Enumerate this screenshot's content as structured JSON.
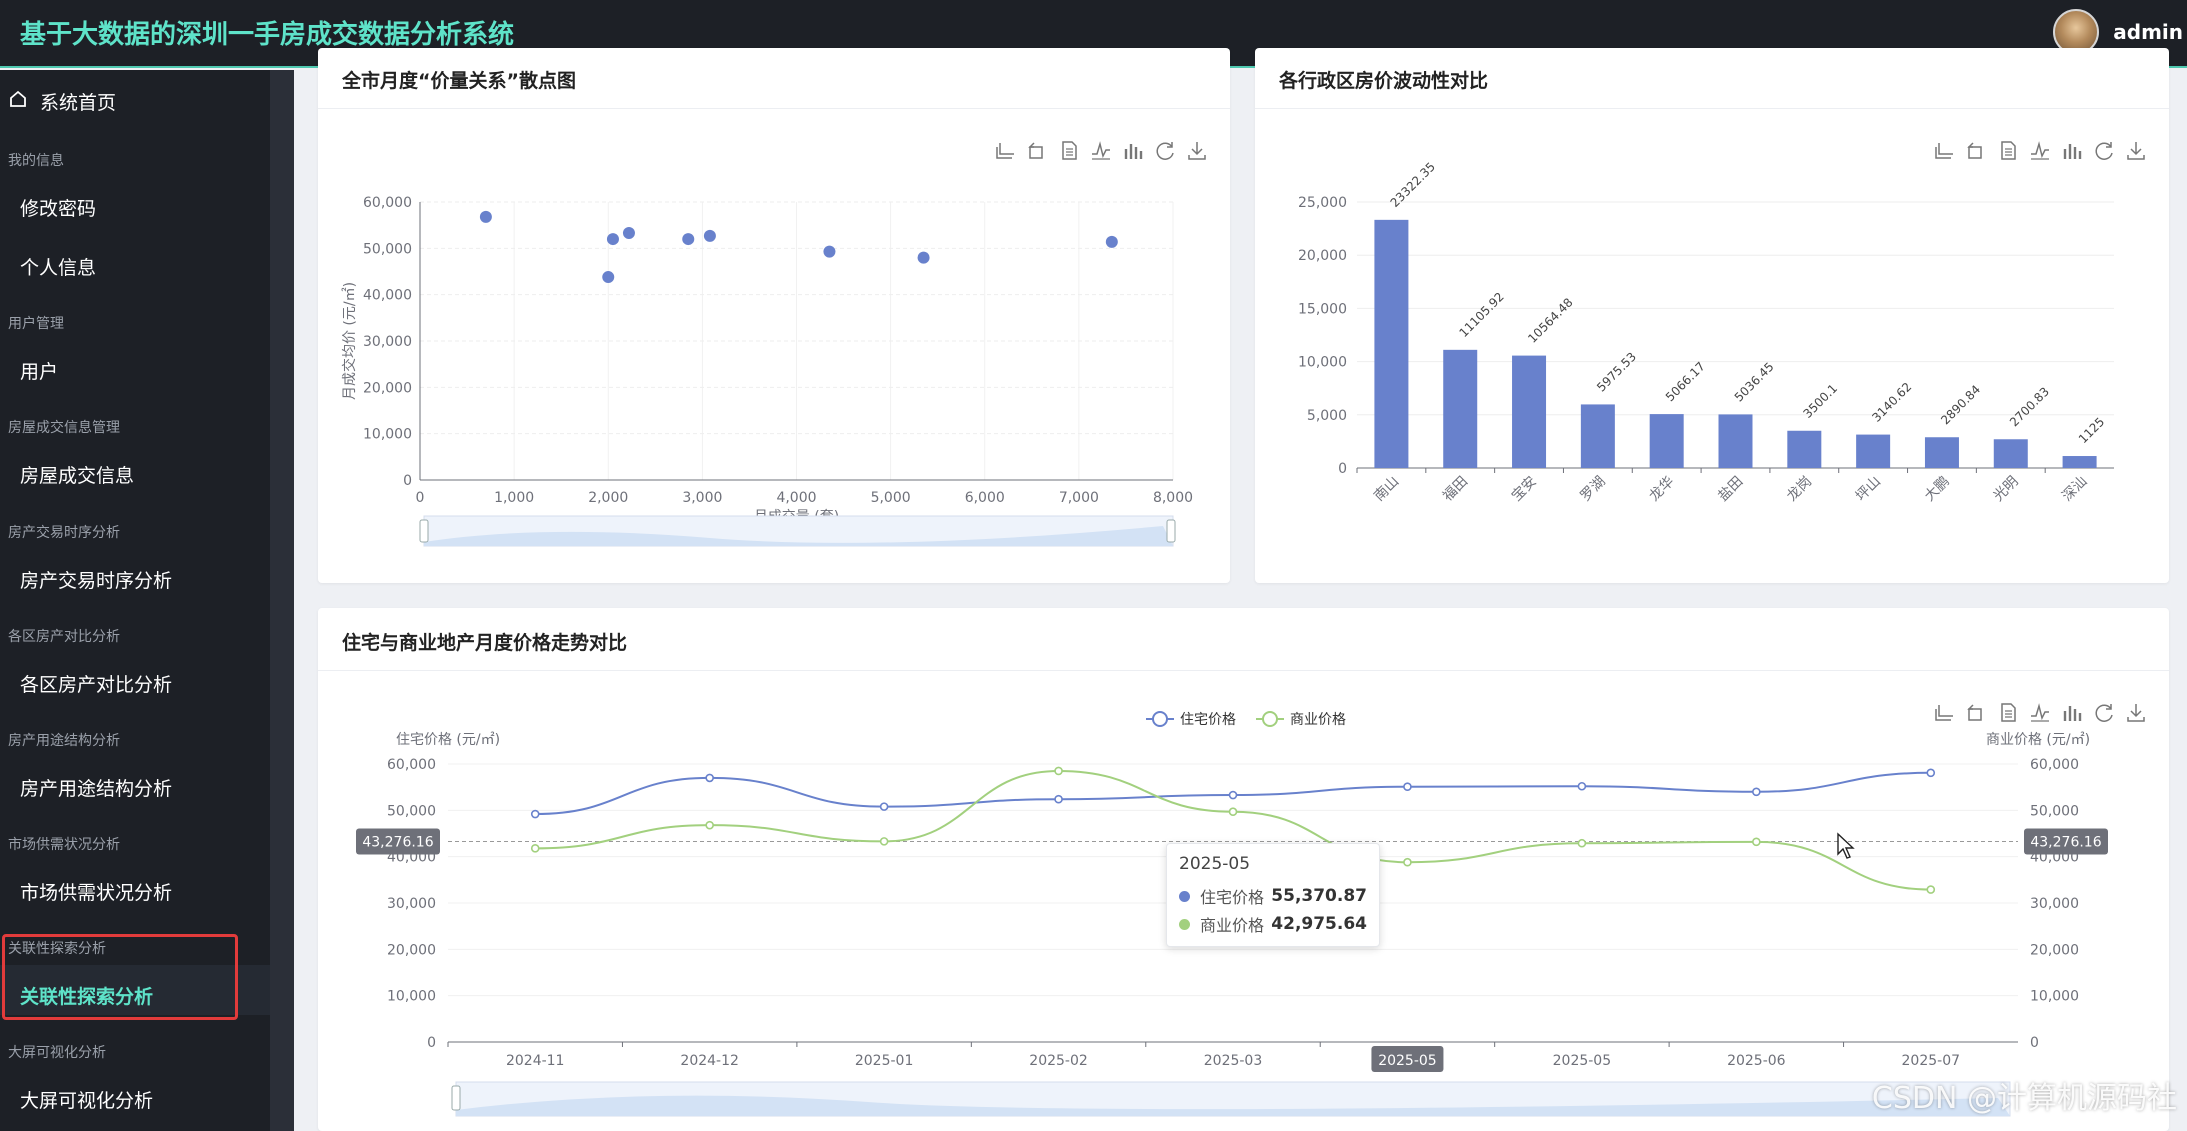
{
  "header": {
    "title": "基于大数据的深圳一手房成交数据分析系统",
    "username": "admin"
  },
  "sidebar": {
    "home": "系统首页",
    "groups": [
      {
        "label": "我的信息",
        "items": [
          "修改密码",
          "个人信息"
        ]
      },
      {
        "label": "用户管理",
        "items": [
          "用户"
        ]
      },
      {
        "label": "房屋成交信息管理",
        "items": [
          "房屋成交信息"
        ]
      },
      {
        "label": "房产交易时序分析",
        "items": [
          "房产交易时序分析"
        ]
      },
      {
        "label": "各区房产对比分析",
        "items": [
          "各区房产对比分析"
        ]
      },
      {
        "label": "房产用途结构分析",
        "items": [
          "房产用途结构分析"
        ]
      },
      {
        "label": "市场供需状况分析",
        "items": [
          "市场供需状况分析"
        ]
      },
      {
        "label": "关联性探索分析",
        "items": [
          "关联性探索分析"
        ]
      },
      {
        "label": "大屏可视化分析",
        "items": [
          "大屏可视化分析"
        ]
      }
    ],
    "active": "关联性探索分析"
  },
  "toolbox_icons": [
    "rect-zoom-icon",
    "zoom-reset-icon",
    "data-view-icon",
    "line-switch-icon",
    "bar-switch-icon",
    "restore-icon",
    "download-icon"
  ],
  "colors": {
    "accent": "#5ee3c9",
    "series_blue": "#6881cc",
    "series_green": "#a2d07e",
    "highlight": "#e23b3b"
  },
  "chart_data": [
    {
      "type": "scatter",
      "title": "全市月度“价量关系”散点图",
      "xlabel": "月成交量 (套)",
      "ylabel": "月成交均价 (元/㎡)",
      "xlim": [
        0,
        8000
      ],
      "ylim": [
        0,
        60000
      ],
      "xticks": [
        "0",
        "1,000",
        "2,000",
        "3,000",
        "4,000",
        "5,000",
        "6,000",
        "7,000",
        "8,000"
      ],
      "yticks": [
        "0",
        "10,000",
        "20,000",
        "30,000",
        "40,000",
        "50,000",
        "60,000"
      ],
      "points": [
        [
          700,
          56800
        ],
        [
          2000,
          43800
        ],
        [
          2050,
          52000
        ],
        [
          2220,
          53300
        ],
        [
          2850,
          52000
        ],
        [
          3080,
          52700
        ],
        [
          4350,
          49300
        ],
        [
          5350,
          48000
        ],
        [
          7350,
          51400
        ]
      ]
    },
    {
      "type": "bar",
      "title": "各行政区房价波动性对比",
      "categories": [
        "南山",
        "福田",
        "宝安",
        "罗湖",
        "龙华",
        "盐田",
        "龙岗",
        "坪山",
        "大鹏",
        "光明",
        "深汕"
      ],
      "values": [
        23322.35,
        11105.92,
        10564.48,
        5975.53,
        5066.17,
        5036.45,
        3500.1,
        3140.62,
        2890.84,
        2700.83,
        1125
      ],
      "value_labels": [
        "23322.35",
        "11105.92",
        "10564.48",
        "5975.53",
        "5066.17",
        "5036.45",
        "3500.1",
        "3140.62",
        "2890.84",
        "2700.83",
        "1125"
      ],
      "ylim": [
        0,
        25000
      ],
      "yticks": [
        "0",
        "5,000",
        "10,000",
        "15,000",
        "20,000",
        "25,000"
      ]
    },
    {
      "type": "line",
      "title": "住宅与商业地产月度价格走势对比",
      "categories": [
        "2024-11",
        "2024-12",
        "2025-01",
        "2025-02",
        "2025-03",
        "2025-05",
        "2025-05",
        "2025-06",
        "2025-07"
      ],
      "series": [
        {
          "name": "住宅价格",
          "values": [
            49200,
            57000,
            50800,
            52400,
            53300,
            55100,
            55200,
            54000,
            58100
          ]
        },
        {
          "name": "商业价格",
          "values": [
            41800,
            46800,
            43300,
            58500,
            49700,
            38800,
            42900,
            43200,
            32900
          ]
        }
      ],
      "ylabel_left": "住宅价格 (元/㎡)",
      "ylabel_right": "商业价格 (元/㎡)",
      "ylim": [
        0,
        60000
      ],
      "yticks": [
        "0",
        "10,000",
        "20,000",
        "30,000",
        "40,000",
        "50,000",
        "60,000"
      ],
      "crosshair_value": "43,276.16",
      "active_category": "2025-05",
      "tooltip": {
        "title": "2025-05",
        "rows": [
          {
            "name": "住宅价格",
            "value": "55,370.87"
          },
          {
            "name": "商业价格",
            "value": "42,975.64"
          }
        ]
      }
    }
  ],
  "watermark": "CSDN @计算机源码社"
}
